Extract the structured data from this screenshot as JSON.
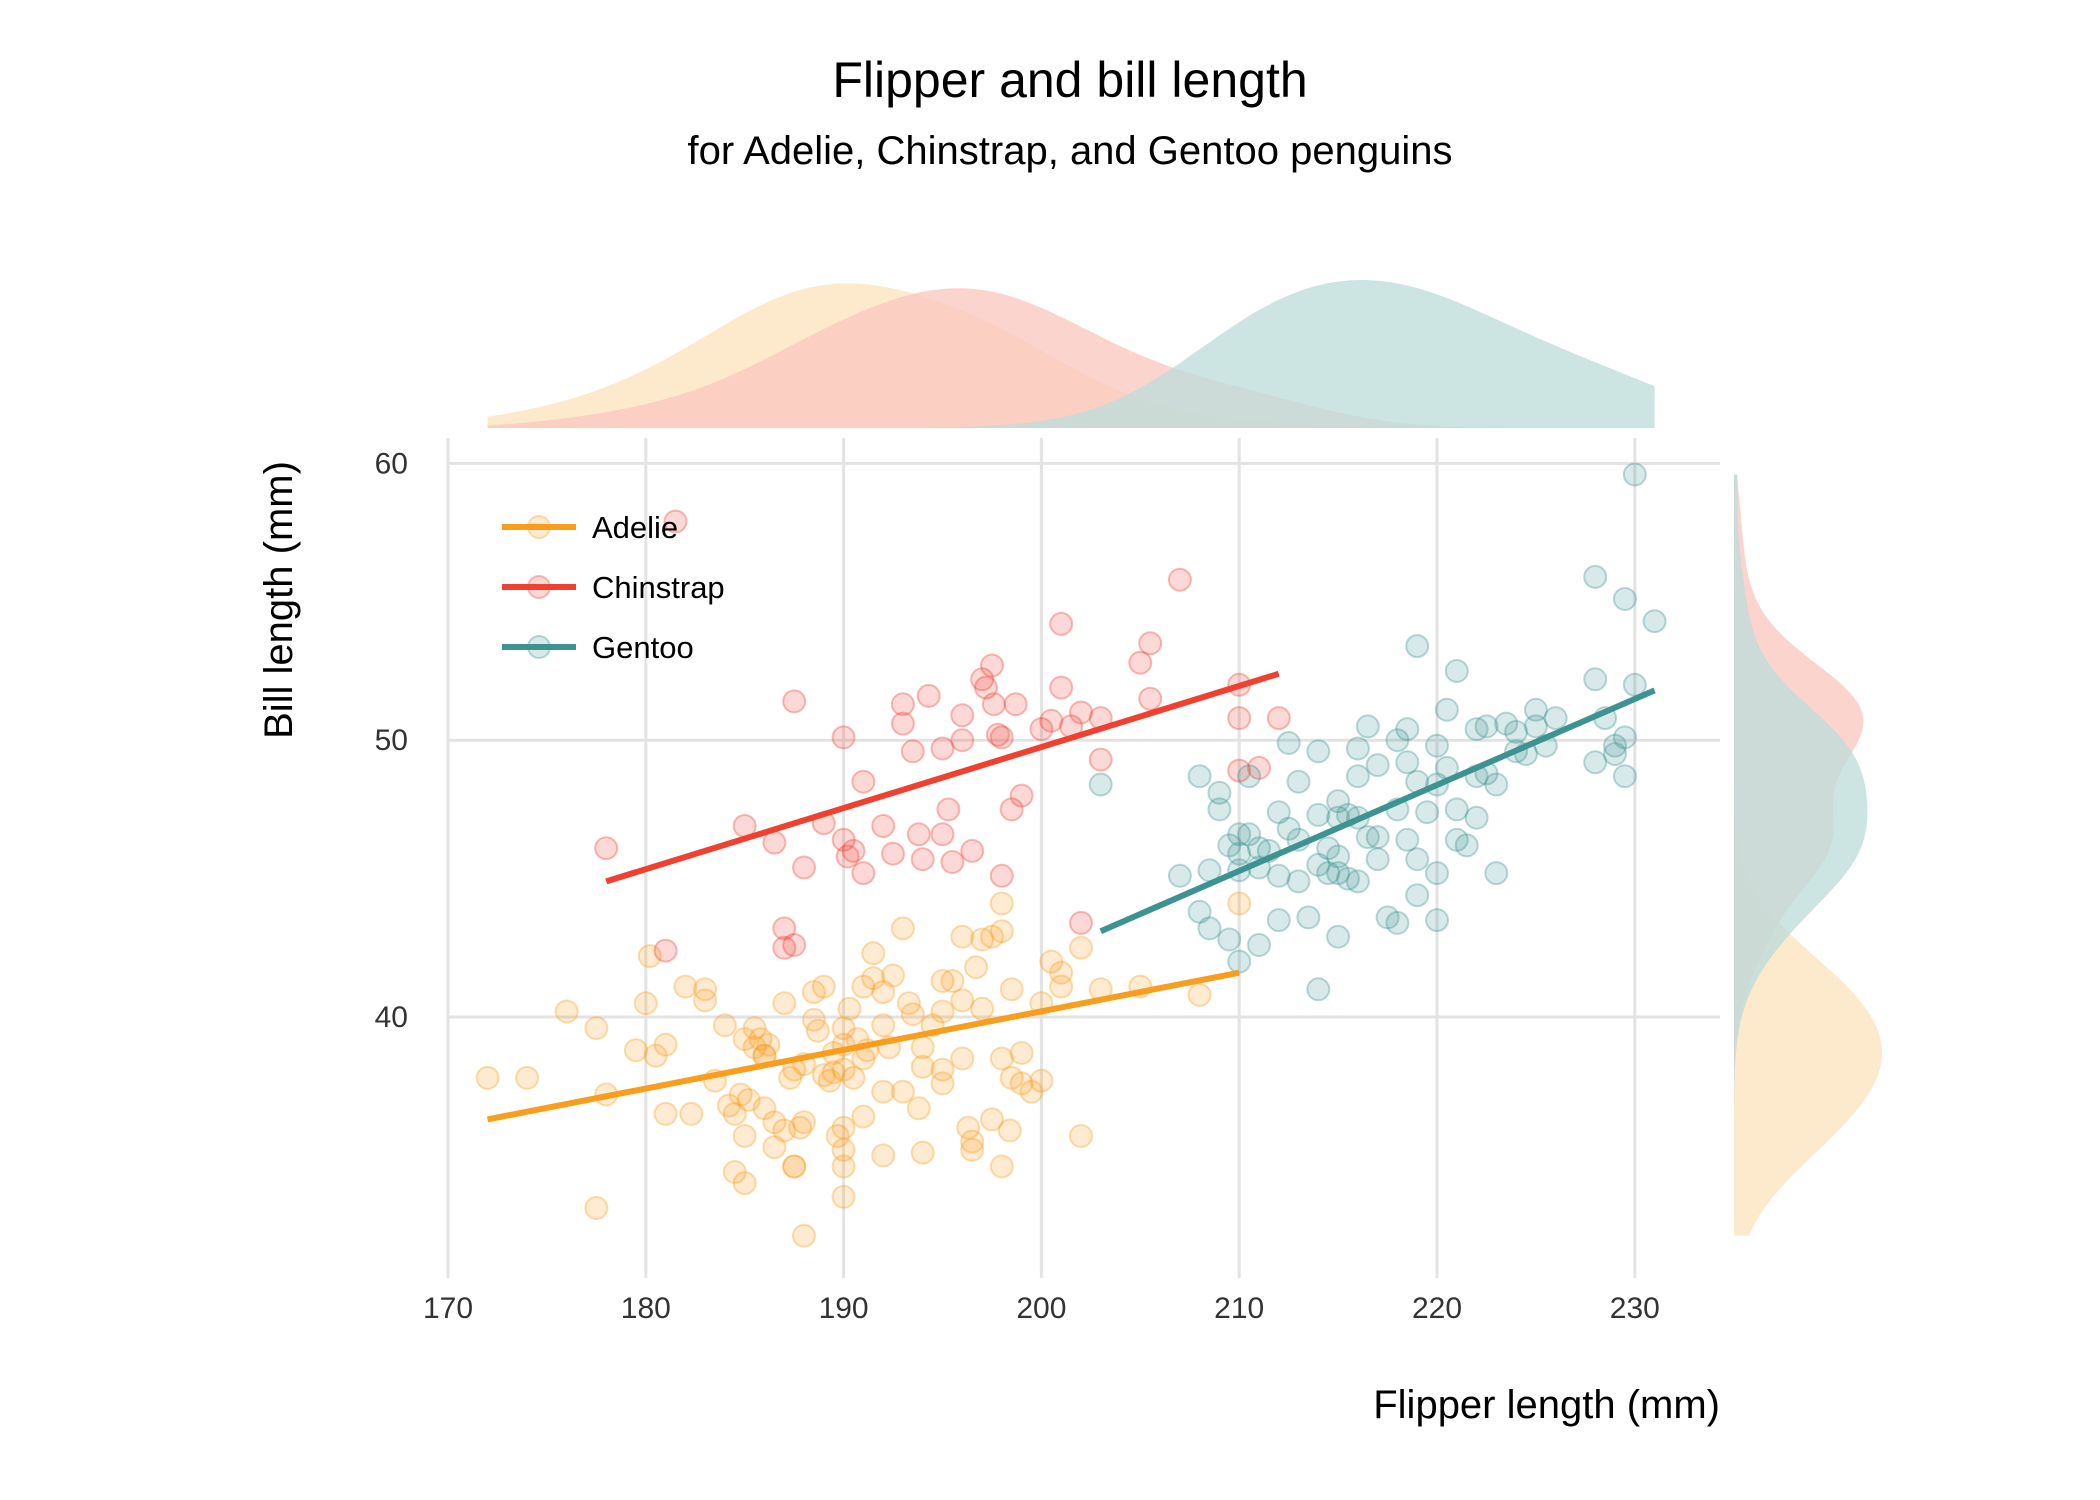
{
  "chart_data": {
    "type": "scatter",
    "title": "Flipper and bill length",
    "subtitle": "for Adelie, Chinstrap, and Gentoo penguins",
    "xlabel": "Flipper length (mm)",
    "ylabel": "Bill length (mm)",
    "xlim": [
      170,
      234
    ],
    "ylim": [
      31,
      61
    ],
    "x_ticks": [
      170,
      180,
      190,
      200,
      210,
      220,
      230
    ],
    "y_ticks": [
      40,
      50,
      60
    ],
    "x_tick_labels": [
      "170",
      "180",
      "190",
      "200",
      "210",
      "220",
      "230"
    ],
    "y_tick_labels": [
      "40",
      "50",
      "60"
    ],
    "grid": true,
    "legend_position": "top-left",
    "marginal_density": {
      "top": true,
      "right": true
    },
    "series": [
      {
        "name": "Adelie",
        "color": "#F89D1E",
        "fill": "#FCE3BE",
        "trend": {
          "x": [
            172,
            210
          ],
          "y": [
            36.3,
            41.6
          ]
        },
        "points": [
          [
            172,
            37.8
          ],
          [
            174,
            37.8
          ],
          [
            176,
            40.2
          ],
          [
            177.5,
            39.6
          ],
          [
            178,
            37.2
          ],
          [
            179.5,
            38.8
          ],
          [
            180,
            40.5
          ],
          [
            180.2,
            42.2
          ],
          [
            180.5,
            38.6
          ],
          [
            181,
            39.0
          ],
          [
            181,
            36.5
          ],
          [
            182,
            41.1
          ],
          [
            182.3,
            36.5
          ],
          [
            183,
            41.0
          ],
          [
            183,
            40.6
          ],
          [
            183.5,
            37.7
          ],
          [
            184,
            39.7
          ],
          [
            184.2,
            36.8
          ],
          [
            184.5,
            36.5
          ],
          [
            184.5,
            34.4
          ],
          [
            184.8,
            37.2
          ],
          [
            185,
            35.7
          ],
          [
            185,
            34.0
          ],
          [
            185.2,
            37.0
          ],
          [
            185.5,
            38.9
          ],
          [
            185.5,
            39.6
          ],
          [
            185.8,
            39.2
          ],
          [
            186,
            36.7
          ],
          [
            186,
            38.6
          ],
          [
            186.2,
            39.0
          ],
          [
            186.5,
            36.2
          ],
          [
            186.5,
            35.3
          ],
          [
            187,
            40.5
          ],
          [
            187,
            35.9
          ],
          [
            187.3,
            37.8
          ],
          [
            187.5,
            38.1
          ],
          [
            187.5,
            34.6
          ],
          [
            187.8,
            36.0
          ],
          [
            188,
            36.2
          ],
          [
            188,
            38.3
          ],
          [
            188.5,
            40.9
          ],
          [
            188.7,
            39.5
          ],
          [
            189,
            41.1
          ],
          [
            189,
            37.9
          ],
          [
            189.3,
            37.7
          ],
          [
            189.5,
            38.7
          ],
          [
            189.7,
            35.7
          ],
          [
            190,
            39.6
          ],
          [
            190,
            39.0
          ],
          [
            190,
            38.1
          ],
          [
            190,
            36.0
          ],
          [
            190,
            35.2
          ],
          [
            190,
            33.5
          ],
          [
            190.3,
            40.3
          ],
          [
            190.5,
            37.8
          ],
          [
            190.7,
            39.2
          ],
          [
            191,
            41.1
          ],
          [
            191,
            38.5
          ],
          [
            191,
            36.4
          ],
          [
            191.2,
            38.8
          ],
          [
            191.5,
            41.4
          ],
          [
            191.5,
            42.3
          ],
          [
            192,
            37.3
          ],
          [
            192,
            39.7
          ],
          [
            192,
            40.9
          ],
          [
            192,
            35.0
          ],
          [
            192.5,
            41.5
          ],
          [
            193,
            43.2
          ],
          [
            193,
            37.3
          ],
          [
            193.3,
            40.5
          ],
          [
            193.5,
            40.1
          ],
          [
            193.8,
            36.7
          ],
          [
            194,
            35.1
          ],
          [
            194,
            38.2
          ],
          [
            194.5,
            39.7
          ],
          [
            195,
            41.3
          ],
          [
            195,
            38.1
          ],
          [
            195,
            37.6
          ],
          [
            195.5,
            41.3
          ],
          [
            196,
            42.9
          ],
          [
            196,
            40.6
          ],
          [
            196,
            38.5
          ],
          [
            196.3,
            36.0
          ],
          [
            196.5,
            35.5
          ],
          [
            196.7,
            41.8
          ],
          [
            197,
            42.8
          ],
          [
            197,
            40.3
          ],
          [
            197.5,
            42.9
          ],
          [
            198,
            43.1
          ],
          [
            198,
            44.1
          ],
          [
            198,
            38.5
          ],
          [
            198.5,
            37.8
          ],
          [
            198.5,
            41.0
          ],
          [
            199,
            38.7
          ],
          [
            199,
            37.6
          ],
          [
            199.5,
            37.3
          ],
          [
            200,
            40.5
          ],
          [
            200.5,
            42.0
          ],
          [
            201,
            41.6
          ],
          [
            201,
            41.1
          ],
          [
            202,
            42.5
          ],
          [
            203,
            41.0
          ],
          [
            205,
            41.1
          ],
          [
            208,
            40.8
          ],
          [
            210,
            44.1
          ],
          [
            177.5,
            33.1
          ],
          [
            187.5,
            34.6
          ],
          [
            188,
            32.1
          ],
          [
            190,
            34.6
          ],
          [
            196.5,
            35.2
          ],
          [
            198,
            34.6
          ],
          [
            202,
            35.7
          ],
          [
            185,
            39.2
          ],
          [
            189.5,
            38.0
          ],
          [
            186,
            38.6
          ],
          [
            197.5,
            36.3
          ],
          [
            194,
            38.9
          ],
          [
            195,
            40.2
          ],
          [
            192.3,
            38.9
          ],
          [
            198.4,
            35.9
          ],
          [
            200,
            37.7
          ],
          [
            188.5,
            39.9
          ]
        ]
      },
      {
        "name": "Chinstrap",
        "color": "#F04030",
        "fill": "#FBC8C0",
        "trend": {
          "x": [
            178,
            212
          ],
          "y": [
            44.9,
            52.4
          ]
        },
        "points": [
          [
            178,
            46.1
          ],
          [
            181,
            42.4
          ],
          [
            181.5,
            57.9
          ],
          [
            185,
            46.9
          ],
          [
            186.5,
            46.3
          ],
          [
            187,
            43.2
          ],
          [
            187,
            42.5
          ],
          [
            187.5,
            42.6
          ],
          [
            187.5,
            51.4
          ],
          [
            188,
            45.4
          ],
          [
            189,
            47.0
          ],
          [
            190,
            50.1
          ],
          [
            190,
            46.4
          ],
          [
            190.2,
            45.8
          ],
          [
            190.5,
            46.0
          ],
          [
            191,
            48.5
          ],
          [
            191,
            45.2
          ],
          [
            192,
            46.9
          ],
          [
            192.5,
            45.9
          ],
          [
            193,
            51.3
          ],
          [
            193,
            50.6
          ],
          [
            193.5,
            49.6
          ],
          [
            193.8,
            46.6
          ],
          [
            194,
            45.7
          ],
          [
            194.3,
            51.6
          ],
          [
            195,
            49.7
          ],
          [
            195,
            46.6
          ],
          [
            195.3,
            47.5
          ],
          [
            195.5,
            45.6
          ],
          [
            196,
            50.0
          ],
          [
            196,
            50.9
          ],
          [
            196.5,
            46.0
          ],
          [
            197,
            52.2
          ],
          [
            197.2,
            51.9
          ],
          [
            197.5,
            52.7
          ],
          [
            197.6,
            51.3
          ],
          [
            197.8,
            50.2
          ],
          [
            198,
            50.1
          ],
          [
            198,
            45.1
          ],
          [
            198.5,
            47.5
          ],
          [
            198.7,
            51.3
          ],
          [
            199,
            48.0
          ],
          [
            200,
            50.4
          ],
          [
            200.5,
            50.7
          ],
          [
            201,
            54.2
          ],
          [
            201,
            51.9
          ],
          [
            201.5,
            50.5
          ],
          [
            202,
            43.4
          ],
          [
            202,
            51.0
          ],
          [
            203,
            50.8
          ],
          [
            203,
            49.3
          ],
          [
            205,
            52.8
          ],
          [
            205.5,
            53.5
          ],
          [
            205.5,
            51.5
          ],
          [
            207,
            55.8
          ],
          [
            210,
            52.0
          ],
          [
            210,
            50.8
          ],
          [
            210,
            48.9
          ],
          [
            211,
            49.0
          ],
          [
            212,
            50.8
          ]
        ]
      },
      {
        "name": "Gentoo",
        "color": "#3D9391",
        "fill": "#BEDCDA",
        "trend": {
          "x": [
            203,
            231
          ],
          "y": [
            43.1,
            51.8
          ]
        },
        "points": [
          [
            203,
            48.4
          ],
          [
            207,
            45.1
          ],
          [
            208,
            43.8
          ],
          [
            208,
            48.7
          ],
          [
            208.5,
            45.3
          ],
          [
            208.5,
            43.2
          ],
          [
            209,
            47.5
          ],
          [
            209,
            48.1
          ],
          [
            209.5,
            42.8
          ],
          [
            209.5,
            46.2
          ],
          [
            210,
            46.6
          ],
          [
            210,
            45.9
          ],
          [
            210,
            45.3
          ],
          [
            210,
            42.0
          ],
          [
            210.5,
            46.6
          ],
          [
            210.5,
            48.7
          ],
          [
            211,
            46.1
          ],
          [
            211,
            45.4
          ],
          [
            211,
            42.6
          ],
          [
            211.5,
            46.0
          ],
          [
            212,
            47.4
          ],
          [
            212,
            45.1
          ],
          [
            212,
            43.5
          ],
          [
            212.5,
            46.8
          ],
          [
            212.5,
            49.9
          ],
          [
            213,
            48.5
          ],
          [
            213,
            46.4
          ],
          [
            213,
            44.9
          ],
          [
            213.5,
            43.6
          ],
          [
            214,
            47.3
          ],
          [
            214,
            45.5
          ],
          [
            214,
            41.0
          ],
          [
            214.5,
            45.2
          ],
          [
            214.5,
            46.1
          ],
          [
            215,
            47.8
          ],
          [
            215,
            47.2
          ],
          [
            215,
            45.8
          ],
          [
            215,
            42.9
          ],
          [
            215.5,
            47.3
          ],
          [
            215.5,
            45.0
          ],
          [
            216,
            49.7
          ],
          [
            216,
            48.7
          ],
          [
            216,
            47.2
          ],
          [
            216.5,
            50.5
          ],
          [
            216.5,
            46.5
          ],
          [
            217,
            49.1
          ],
          [
            217,
            45.7
          ],
          [
            217.5,
            43.6
          ],
          [
            218,
            50.0
          ],
          [
            218,
            47.5
          ],
          [
            218,
            43.4
          ],
          [
            218.5,
            50.4
          ],
          [
            218.5,
            49.2
          ],
          [
            218.5,
            46.4
          ],
          [
            219,
            53.4
          ],
          [
            219,
            48.5
          ],
          [
            219,
            45.7
          ],
          [
            219,
            44.4
          ],
          [
            219.5,
            47.4
          ],
          [
            220,
            49.8
          ],
          [
            220,
            48.4
          ],
          [
            220,
            45.2
          ],
          [
            220,
            43.5
          ],
          [
            220.5,
            51.1
          ],
          [
            220.5,
            49.0
          ],
          [
            221,
            52.5
          ],
          [
            221,
            46.4
          ],
          [
            221.5,
            46.2
          ],
          [
            222,
            50.4
          ],
          [
            222,
            48.7
          ],
          [
            222,
            47.2
          ],
          [
            222.5,
            50.5
          ],
          [
            222.5,
            48.8
          ],
          [
            223,
            45.2
          ],
          [
            223,
            48.4
          ],
          [
            223.5,
            50.6
          ],
          [
            224,
            49.6
          ],
          [
            224,
            50.3
          ],
          [
            224.5,
            49.5
          ],
          [
            225,
            51.1
          ],
          [
            225,
            50.5
          ],
          [
            225.5,
            49.8
          ],
          [
            226,
            50.8
          ],
          [
            228,
            55.9
          ],
          [
            228,
            52.2
          ],
          [
            228,
            49.2
          ],
          [
            228.5,
            50.8
          ],
          [
            229,
            49.8
          ],
          [
            229,
            49.5
          ],
          [
            229.5,
            55.1
          ],
          [
            229.5,
            50.1
          ],
          [
            229.5,
            48.7
          ],
          [
            230,
            59.6
          ],
          [
            230,
            52.0
          ],
          [
            231,
            54.3
          ],
          [
            216,
            44.9
          ],
          [
            215,
            45.2
          ],
          [
            217,
            46.5
          ],
          [
            214,
            49.6
          ],
          [
            221,
            47.5
          ]
        ]
      }
    ]
  }
}
